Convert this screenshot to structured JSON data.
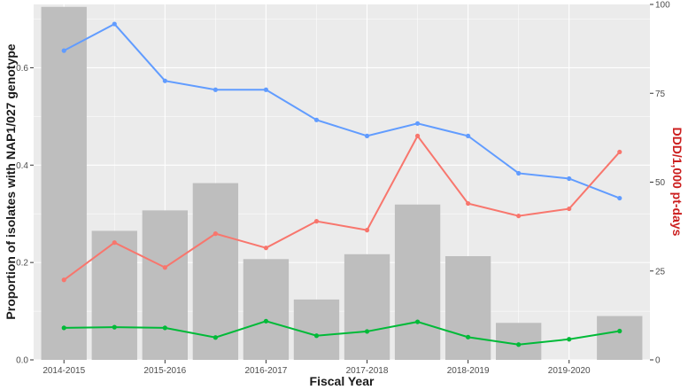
{
  "chart_data": {
    "type": "bar",
    "xlabel": "Fiscal Year",
    "ylabel": "Proportion of isolates with NAP1/027 genotype",
    "y2label": "DDD/1,000 pt-days",
    "ylim": [
      0,
      0.73
    ],
    "y2lim": [
      0,
      100
    ],
    "yticks": [
      "0.0",
      "0.2",
      "0.4",
      "0.6"
    ],
    "yticks_values": [
      0,
      0.2,
      0.4,
      0.6
    ],
    "y2ticks": [
      "0",
      "25",
      "50",
      "75",
      "100"
    ],
    "y2ticks_values": [
      0,
      25,
      50,
      75,
      100
    ],
    "xtick_labels": [
      "2014-2015",
      "2015-2016",
      "2016-2017",
      "2017-2018",
      "2018-2019",
      "2019-2020"
    ],
    "xtick_positions": [
      1,
      3,
      5,
      7,
      9,
      11
    ],
    "x": [
      1,
      2,
      3,
      4,
      5,
      6,
      7,
      8,
      9,
      10,
      11,
      12
    ],
    "grid": true,
    "colors": {
      "panel": "#ebebeb",
      "grid": "#ffffff",
      "bar": "#bebebe",
      "red": "#f8766d",
      "blue": "#619cff",
      "green": "#00ba38",
      "y2title": "#cc1f1f"
    },
    "bars": {
      "axis": "left",
      "values": [
        0.725,
        0.265,
        0.307,
        0.363,
        0.207,
        0.124,
        0.217,
        0.319,
        0.213,
        0.076,
        null,
        0.09
      ]
    },
    "series": [
      {
        "axis": "right",
        "color": "#619cff",
        "values": [
          87,
          94.5,
          78.5,
          76,
          76,
          67.5,
          63,
          66.5,
          63,
          52.5,
          51,
          45.5
        ]
      },
      {
        "axis": "right",
        "color": "#f8766d",
        "values": [
          22.5,
          33,
          26,
          35.5,
          31.5,
          39,
          36.5,
          63,
          44,
          40.5,
          42.5,
          58.5
        ]
      },
      {
        "axis": "right",
        "color": "#00ba38",
        "values": [
          9,
          9.2,
          9,
          6.3,
          10.9,
          6.8,
          8,
          10.7,
          6.4,
          4.3,
          5.8,
          8.1
        ]
      }
    ]
  }
}
